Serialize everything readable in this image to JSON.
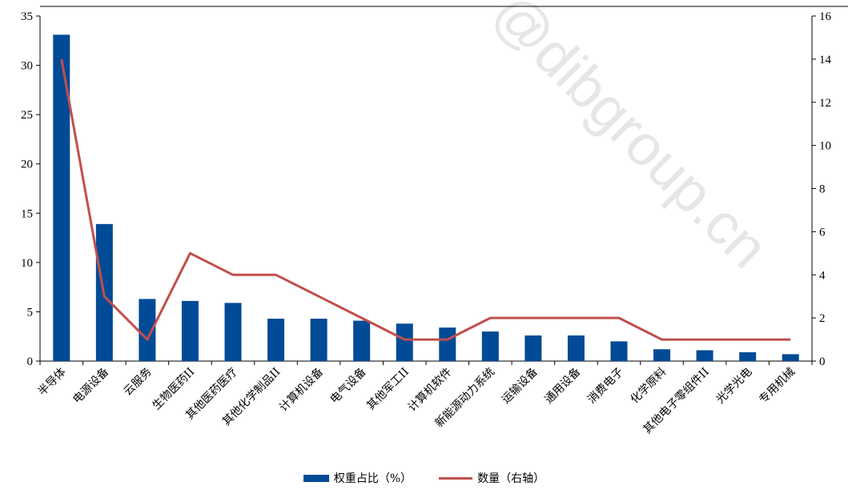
{
  "chart_data": {
    "type": "bar+line",
    "categories": [
      "半导体",
      "电源设备",
      "云服务",
      "生物医药II",
      "其他医药医疗",
      "其他化学制品II",
      "计算机设备",
      "电气设备",
      "其他军工II",
      "计算机软件",
      "新能源动力系统",
      "运输设备",
      "通用设备",
      "消费电子",
      "化学原料",
      "其他电子零组件II",
      "光学光电",
      "专用机械"
    ],
    "series": [
      {
        "name": "权重占比（%）",
        "type": "bar",
        "axis": "left",
        "color": "#004a96",
        "values": [
          33.1,
          13.9,
          6.3,
          6.1,
          5.9,
          4.3,
          4.3,
          4.1,
          3.8,
          3.4,
          3.0,
          2.6,
          2.6,
          2.0,
          1.2,
          1.1,
          0.9,
          0.7
        ]
      },
      {
        "name": "数量（右轴）",
        "type": "line",
        "axis": "right",
        "color": "#c0504d",
        "values": [
          14,
          3,
          1,
          5,
          4,
          4,
          3,
          2,
          1,
          1,
          2,
          2,
          2,
          2,
          1,
          1,
          1,
          1
        ]
      }
    ],
    "y_left": {
      "min": 0,
      "max": 35,
      "ticks": [
        "0",
        "5",
        "10",
        "15",
        "20",
        "25",
        "30",
        "35"
      ]
    },
    "y_right": {
      "min": 0,
      "max": 16,
      "ticks": [
        "0",
        "2",
        "4",
        "6",
        "8",
        "10",
        "12",
        "14",
        "16"
      ]
    },
    "legend_position": "bottom",
    "grid": false
  },
  "watermark": "@dibgroup.cn"
}
